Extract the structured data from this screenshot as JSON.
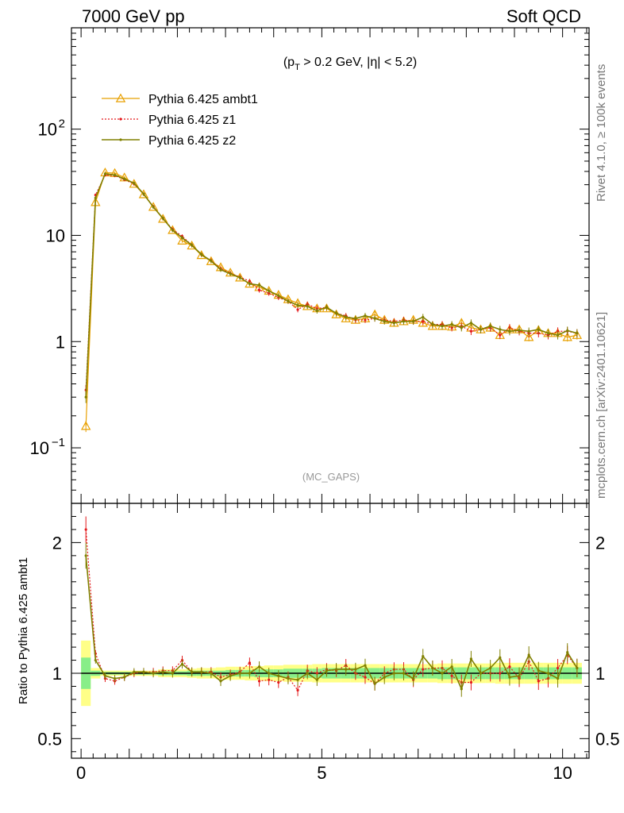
{
  "header": {
    "left": "7000 GeV pp",
    "right": "Soft QCD"
  },
  "side_labels": {
    "rivet": "Rivet 4.1.0, ≥ 100k events",
    "mcplots": "mcplots.cern.ch [arXiv:2401.10621]"
  },
  "chart_data": [
    {
      "type": "line",
      "panel": "main",
      "title_parts": [
        "(p",
        "T",
        " > 0.2 GeV, |η| < 5.2)"
      ],
      "watermark": "(MC_GAPS)",
      "yscale": "log",
      "ylim": [
        0.03,
        900
      ],
      "xlim": [
        -0.2,
        10.55
      ],
      "yticks": [
        {
          "value": 0.1,
          "base": "10",
          "exp": "−1"
        },
        {
          "value": 1,
          "text": "1"
        },
        {
          "value": 10,
          "text": "10"
        },
        {
          "value": 100,
          "base": "10",
          "exp": "2"
        }
      ],
      "x": [
        0.1,
        0.3,
        0.5,
        0.7,
        0.9,
        1.1,
        1.3,
        1.5,
        1.7,
        1.9,
        2.1,
        2.3,
        2.5,
        2.7,
        2.9,
        3.1,
        3.3,
        3.5,
        3.7,
        3.9,
        4.1,
        4.3,
        4.5,
        4.7,
        4.9,
        5.1,
        5.3,
        5.5,
        5.7,
        5.9,
        6.1,
        6.3,
        6.5,
        6.7,
        6.9,
        7.1,
        7.3,
        7.5,
        7.7,
        7.9,
        8.1,
        8.3,
        8.5,
        8.7,
        8.9,
        9.1,
        9.3,
        9.5,
        9.7,
        9.9,
        10.1,
        10.3
      ],
      "series": [
        {
          "name": "Pythia 6.425 ambt1",
          "color": "#e8a000",
          "style": "solid",
          "marker": "triangle",
          "values": [
            0.16,
            20.5,
            39,
            38.5,
            35,
            30.5,
            24.3,
            18.5,
            14.3,
            11.2,
            8.9,
            8.0,
            6.5,
            5.7,
            5.0,
            4.45,
            4.0,
            3.5,
            3.25,
            3.0,
            2.75,
            2.5,
            2.3,
            2.15,
            2.05,
            2.05,
            1.8,
            1.65,
            1.6,
            1.65,
            1.8,
            1.6,
            1.5,
            1.55,
            1.6,
            1.5,
            1.4,
            1.4,
            1.38,
            1.5,
            1.35,
            1.3,
            1.35,
            1.15,
            1.3,
            1.3,
            1.1,
            1.28,
            1.2,
            1.2,
            1.1,
            1.15
          ]
        },
        {
          "name": "Pythia 6.425 z1",
          "color": "#e41a1c",
          "style": "dotted",
          "marker": "dot",
          "values": [
            0.35,
            24.0,
            37.0,
            36.5,
            33.5,
            30.5,
            24.5,
            18.7,
            14.5,
            11.4,
            9.8,
            8.1,
            6.6,
            5.8,
            4.85,
            4.4,
            4.05,
            3.7,
            3.05,
            2.85,
            2.6,
            2.4,
            2.0,
            2.25,
            2.05,
            2.1,
            1.85,
            1.75,
            1.6,
            1.6,
            1.65,
            1.6,
            1.55,
            1.6,
            1.55,
            1.55,
            1.45,
            1.45,
            1.35,
            1.4,
            1.25,
            1.3,
            1.35,
            1.15,
            1.35,
            1.25,
            1.2,
            1.2,
            1.15,
            1.25,
            1.25,
            1.2
          ]
        },
        {
          "name": "Pythia 6.425 z2",
          "color": "#808000",
          "style": "solid",
          "marker": "dot",
          "values": [
            0.3,
            22.5,
            38.0,
            37.0,
            34.0,
            31.0,
            24.5,
            18.5,
            14.5,
            11.2,
            9.5,
            8.1,
            6.6,
            5.75,
            4.75,
            4.35,
            4.0,
            3.5,
            3.4,
            3.0,
            2.7,
            2.4,
            2.2,
            2.15,
            1.95,
            2.1,
            1.85,
            1.7,
            1.65,
            1.75,
            1.65,
            1.55,
            1.5,
            1.55,
            1.55,
            1.7,
            1.45,
            1.4,
            1.45,
            1.35,
            1.5,
            1.3,
            1.4,
            1.3,
            1.25,
            1.28,
            1.25,
            1.3,
            1.2,
            1.15,
            1.27,
            1.2
          ]
        }
      ]
    },
    {
      "type": "line",
      "panel": "ratio",
      "ylabel": "Ratio to Pythia 6.425 ambt1",
      "ylim": [
        0.35,
        2.3
      ],
      "xlim": [
        -0.2,
        10.55
      ],
      "yticks": [
        {
          "value": 0.5,
          "text": "0.5"
        },
        {
          "value": 1,
          "text": "1"
        },
        {
          "value": 2,
          "text": "2"
        }
      ],
      "xticks": [
        {
          "value": 0,
          "text": "0"
        },
        {
          "value": 5,
          "text": "5"
        },
        {
          "value": 10,
          "text": "10"
        }
      ],
      "reference_band_edges": [
        0.0,
        0.2,
        0.4,
        0.6,
        0.8,
        1.0,
        1.2,
        1.4,
        1.6,
        1.8,
        2.0,
        2.2,
        2.4,
        2.6,
        2.8,
        3.0,
        3.2,
        3.4,
        3.6,
        3.8,
        4.0,
        4.2,
        4.4,
        4.6,
        4.8,
        5.0,
        5.2,
        5.4,
        5.6,
        5.8,
        6.0,
        6.2,
        6.4,
        6.6,
        6.8,
        7.0,
        7.2,
        7.4,
        7.6,
        7.8,
        8.0,
        8.2,
        8.4,
        8.6,
        8.8,
        9.0,
        9.2,
        9.4,
        9.6,
        9.8,
        10.0,
        10.2,
        10.4
      ],
      "reference_inner": [
        0.12,
        0.02,
        0.01,
        0.01,
        0.01,
        0.01,
        0.01,
        0.01,
        0.015,
        0.015,
        0.015,
        0.02,
        0.02,
        0.02,
        0.02,
        0.025,
        0.025,
        0.025,
        0.03,
        0.03,
        0.03,
        0.035,
        0.035,
        0.035,
        0.035,
        0.04,
        0.04,
        0.04,
        0.04,
        0.04,
        0.04,
        0.04,
        0.04,
        0.04,
        0.04,
        0.04,
        0.04,
        0.045,
        0.045,
        0.045,
        0.045,
        0.045,
        0.045,
        0.045,
        0.045,
        0.045,
        0.045,
        0.045,
        0.045,
        0.045,
        0.045,
        0.045
      ],
      "reference_outer": [
        0.25,
        0.04,
        0.02,
        0.02,
        0.02,
        0.02,
        0.02,
        0.02,
        0.03,
        0.03,
        0.03,
        0.035,
        0.04,
        0.04,
        0.045,
        0.05,
        0.05,
        0.055,
        0.055,
        0.06,
        0.06,
        0.065,
        0.065,
        0.065,
        0.07,
        0.07,
        0.07,
        0.07,
        0.07,
        0.07,
        0.07,
        0.07,
        0.07,
        0.07,
        0.07,
        0.07,
        0.07,
        0.075,
        0.075,
        0.075,
        0.075,
        0.075,
        0.075,
        0.08,
        0.08,
        0.08,
        0.08,
        0.08,
        0.08,
        0.08,
        0.08,
        0.08
      ],
      "x": [
        0.1,
        0.3,
        0.5,
        0.7,
        0.9,
        1.1,
        1.3,
        1.5,
        1.7,
        1.9,
        2.1,
        2.3,
        2.5,
        2.7,
        2.9,
        3.1,
        3.3,
        3.5,
        3.7,
        3.9,
        4.1,
        4.3,
        4.5,
        4.7,
        4.9,
        5.1,
        5.3,
        5.5,
        5.7,
        5.9,
        6.1,
        6.3,
        6.5,
        6.7,
        6.9,
        7.1,
        7.3,
        7.5,
        7.7,
        7.9,
        8.1,
        8.3,
        8.5,
        8.7,
        8.9,
        9.1,
        9.3,
        9.5,
        9.7,
        9.9,
        10.1,
        10.3
      ],
      "series": [
        {
          "name": "Pythia 6.425 z1",
          "color": "#e41a1c",
          "style": "dotted",
          "values": [
            2.1,
            1.15,
            0.96,
            0.94,
            0.97,
            1.0,
            1.01,
            1.01,
            1.02,
            1.02,
            1.1,
            1.01,
            1.01,
            1.01,
            0.97,
            0.99,
            1.01,
            1.08,
            0.94,
            0.95,
            0.93,
            0.97,
            0.87,
            1.02,
            1.0,
            1.03,
            1.02,
            1.06,
            1.0,
            0.97,
            0.92,
            1.0,
            1.03,
            1.03,
            0.95,
            1.03,
            1.04,
            1.04,
            0.98,
            0.93,
            0.93,
            1.0,
            1.0,
            1.0,
            1.05,
            0.96,
            1.09,
            0.94,
            0.96,
            1.04,
            1.14,
            1.04
          ]
        },
        {
          "name": "Pythia 6.425 z2",
          "color": "#808000",
          "style": "solid",
          "values": [
            1.9,
            1.1,
            0.98,
            0.96,
            0.97,
            1.01,
            1.01,
            1.0,
            1.01,
            1.0,
            1.07,
            1.01,
            1.01,
            1.0,
            0.94,
            0.98,
            1.0,
            1.0,
            1.05,
            1.0,
            0.98,
            0.96,
            0.95,
            1.0,
            0.95,
            1.02,
            1.03,
            1.03,
            1.03,
            1.06,
            0.92,
            0.97,
            1.0,
            1.0,
            0.96,
            1.13,
            1.04,
            1.0,
            1.05,
            0.88,
            1.11,
            1.0,
            1.04,
            1.12,
            0.97,
            0.98,
            1.14,
            1.02,
            1.0,
            0.96,
            1.16,
            1.04
          ]
        }
      ]
    }
  ]
}
